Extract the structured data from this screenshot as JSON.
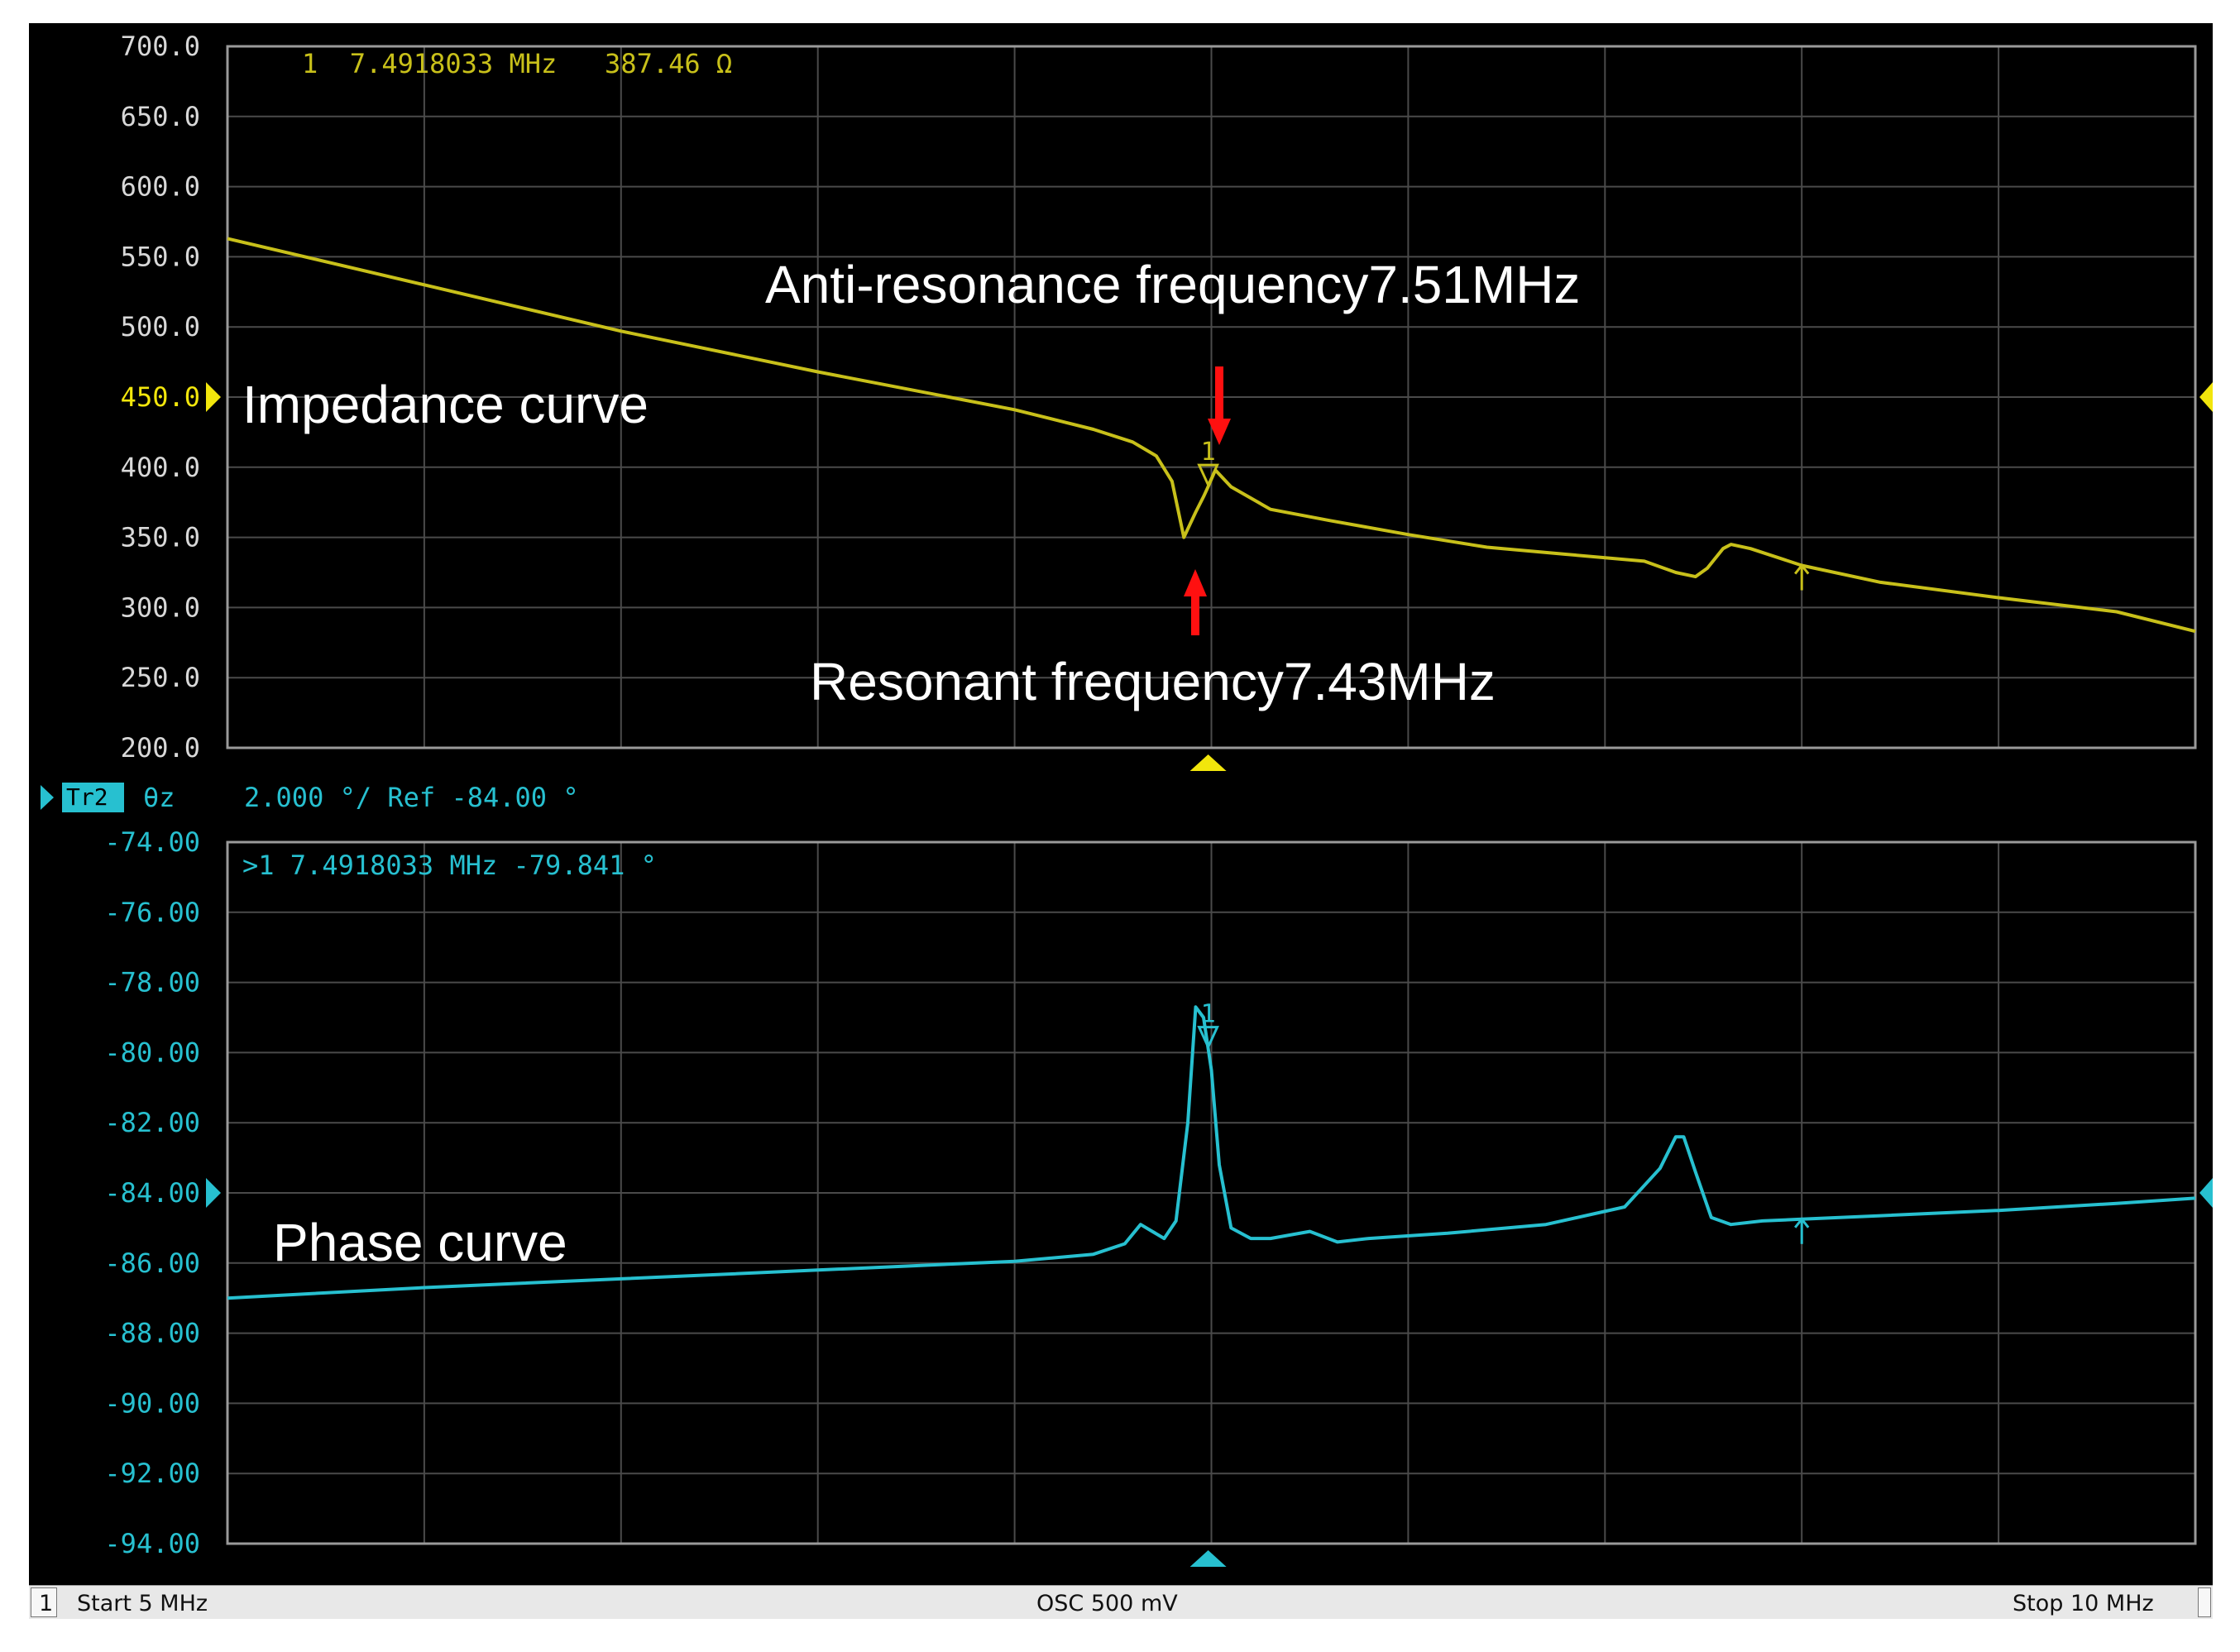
{
  "colors": {
    "background": "#000000",
    "grid": "#4a4a4a",
    "frame": "#9a9a9a",
    "impedance": "#c8c01a",
    "impedance_axis": "#d8d8d8",
    "impedance_ref": "#f2e60c",
    "phase": "#27c0d0",
    "annotation_text": "#ffffff",
    "arrow": "#ff1010"
  },
  "impedance_panel": {
    "marker_readout": "1  7.4918033 MHz   387.46 Ω",
    "ref_tick_label": "450.0"
  },
  "trace2_header": {
    "badge": "Tr2",
    "format": "θz",
    "scale": "2.000 °/ Ref -84.00 °"
  },
  "phase_panel": {
    "marker_readout": ">1 7.4918033 MHz -79.841 °",
    "ref_tick_label": "-84.00"
  },
  "annotations": {
    "anti_resonance": "Anti-resonance frequency7.51MHz",
    "resonance": "Resonant frequency7.43MHz",
    "impedance_label": "Impedance curve",
    "phase_label": "Phase curve"
  },
  "status_bar": {
    "channel": "1",
    "start": "Start 5 MHz",
    "source": "OSC 500 mV",
    "stop": "Stop 10 MHz"
  },
  "chart_data": [
    {
      "type": "line",
      "name": "impedance",
      "xlim": [
        5,
        10
      ],
      "ylim": [
        200,
        700
      ],
      "y_ticks": [
        "700.0",
        "650.0",
        "600.0",
        "550.0",
        "500.0",
        "450.0",
        "400.0",
        "350.0",
        "300.0",
        "250.0",
        "200.0"
      ],
      "reference_value": 450,
      "marker": {
        "label": "1",
        "x": 7.4918033,
        "y": 387.46
      },
      "x": [
        5.0,
        5.5,
        6.0,
        6.5,
        7.0,
        7.2,
        7.3,
        7.36,
        7.4,
        7.43,
        7.46,
        7.48,
        7.49,
        7.51,
        7.55,
        7.65,
        7.8,
        8.0,
        8.2,
        8.4,
        8.6,
        8.68,
        8.73,
        8.76,
        8.8,
        8.82,
        8.87,
        9.0,
        9.2,
        9.5,
        9.8,
        10.0
      ],
      "y": [
        563,
        530,
        497,
        468,
        441,
        427,
        418,
        408,
        390,
        350,
        368,
        379,
        385,
        398,
        386,
        370,
        362,
        352,
        343,
        338,
        333,
        325,
        322,
        328,
        342,
        345,
        342,
        330,
        318,
        307,
        297,
        283
      ]
    },
    {
      "type": "line",
      "name": "phase",
      "xlim": [
        5,
        10
      ],
      "ylim": [
        -94,
        -74
      ],
      "y_ticks": [
        "-74.00",
        "-76.00",
        "-78.00",
        "-80.00",
        "-82.00",
        "-84.00",
        "-86.00",
        "-88.00",
        "-90.00",
        "-92.00",
        "-94.00"
      ],
      "reference_value": -84,
      "marker": {
        "label": "1",
        "x": 7.4918033,
        "y": -79.841
      },
      "x": [
        5.0,
        5.5,
        6.0,
        6.5,
        7.0,
        7.2,
        7.28,
        7.32,
        7.35,
        7.38,
        7.41,
        7.44,
        7.46,
        7.48,
        7.5,
        7.52,
        7.55,
        7.6,
        7.65,
        7.75,
        7.82,
        7.9,
        8.1,
        8.35,
        8.55,
        8.64,
        8.68,
        8.7,
        8.73,
        8.77,
        8.82,
        8.9,
        9.0,
        9.2,
        9.5,
        9.8,
        10.0
      ],
      "y": [
        -87.0,
        -86.7,
        -86.45,
        -86.2,
        -85.95,
        -85.75,
        -85.45,
        -84.9,
        -85.1,
        -85.3,
        -84.8,
        -82.0,
        -78.7,
        -79.0,
        -80.5,
        -83.2,
        -85.0,
        -85.3,
        -85.3,
        -85.1,
        -85.4,
        -85.3,
        -85.15,
        -84.9,
        -84.4,
        -83.3,
        -82.4,
        -82.4,
        -83.4,
        -84.7,
        -84.9,
        -84.8,
        -84.75,
        -84.65,
        -84.5,
        -84.3,
        -84.15
      ]
    }
  ]
}
